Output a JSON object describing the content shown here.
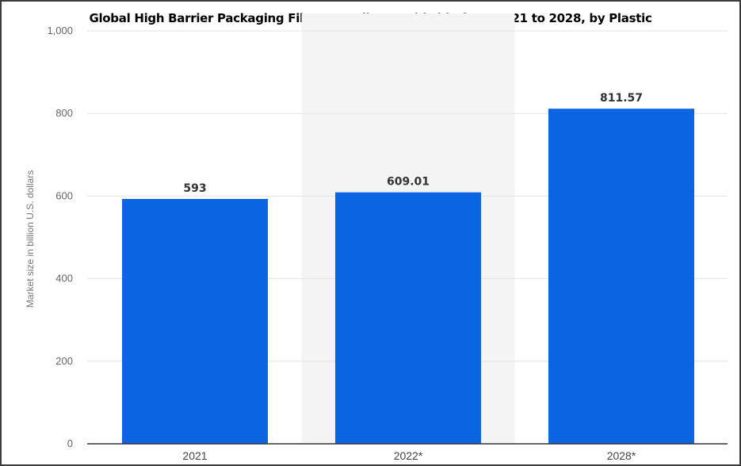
{
  "chart_data": {
    "type": "bar",
    "title": "Global High Barrier Packaging Films spending worldwide from 2021 to 2028, by Plastic",
    "xlabel": "",
    "ylabel": "Market size in billion U.S. dollars",
    "categories": [
      "2021",
      "2022*",
      "2028*"
    ],
    "values": [
      593,
      609.01,
      811.57
    ],
    "value_labels": [
      "593",
      "609.01",
      "811.57"
    ],
    "yticks": [
      0,
      200,
      400,
      600,
      800,
      1000
    ],
    "ytick_labels": [
      "0",
      "200",
      "400",
      "600",
      "800",
      "1,000"
    ],
    "ylim": [
      0,
      1000
    ],
    "grid": true,
    "highlighted_category": "2022*",
    "bar_color": "#0b65e3",
    "highlight_background": "#f4f4f4"
  }
}
